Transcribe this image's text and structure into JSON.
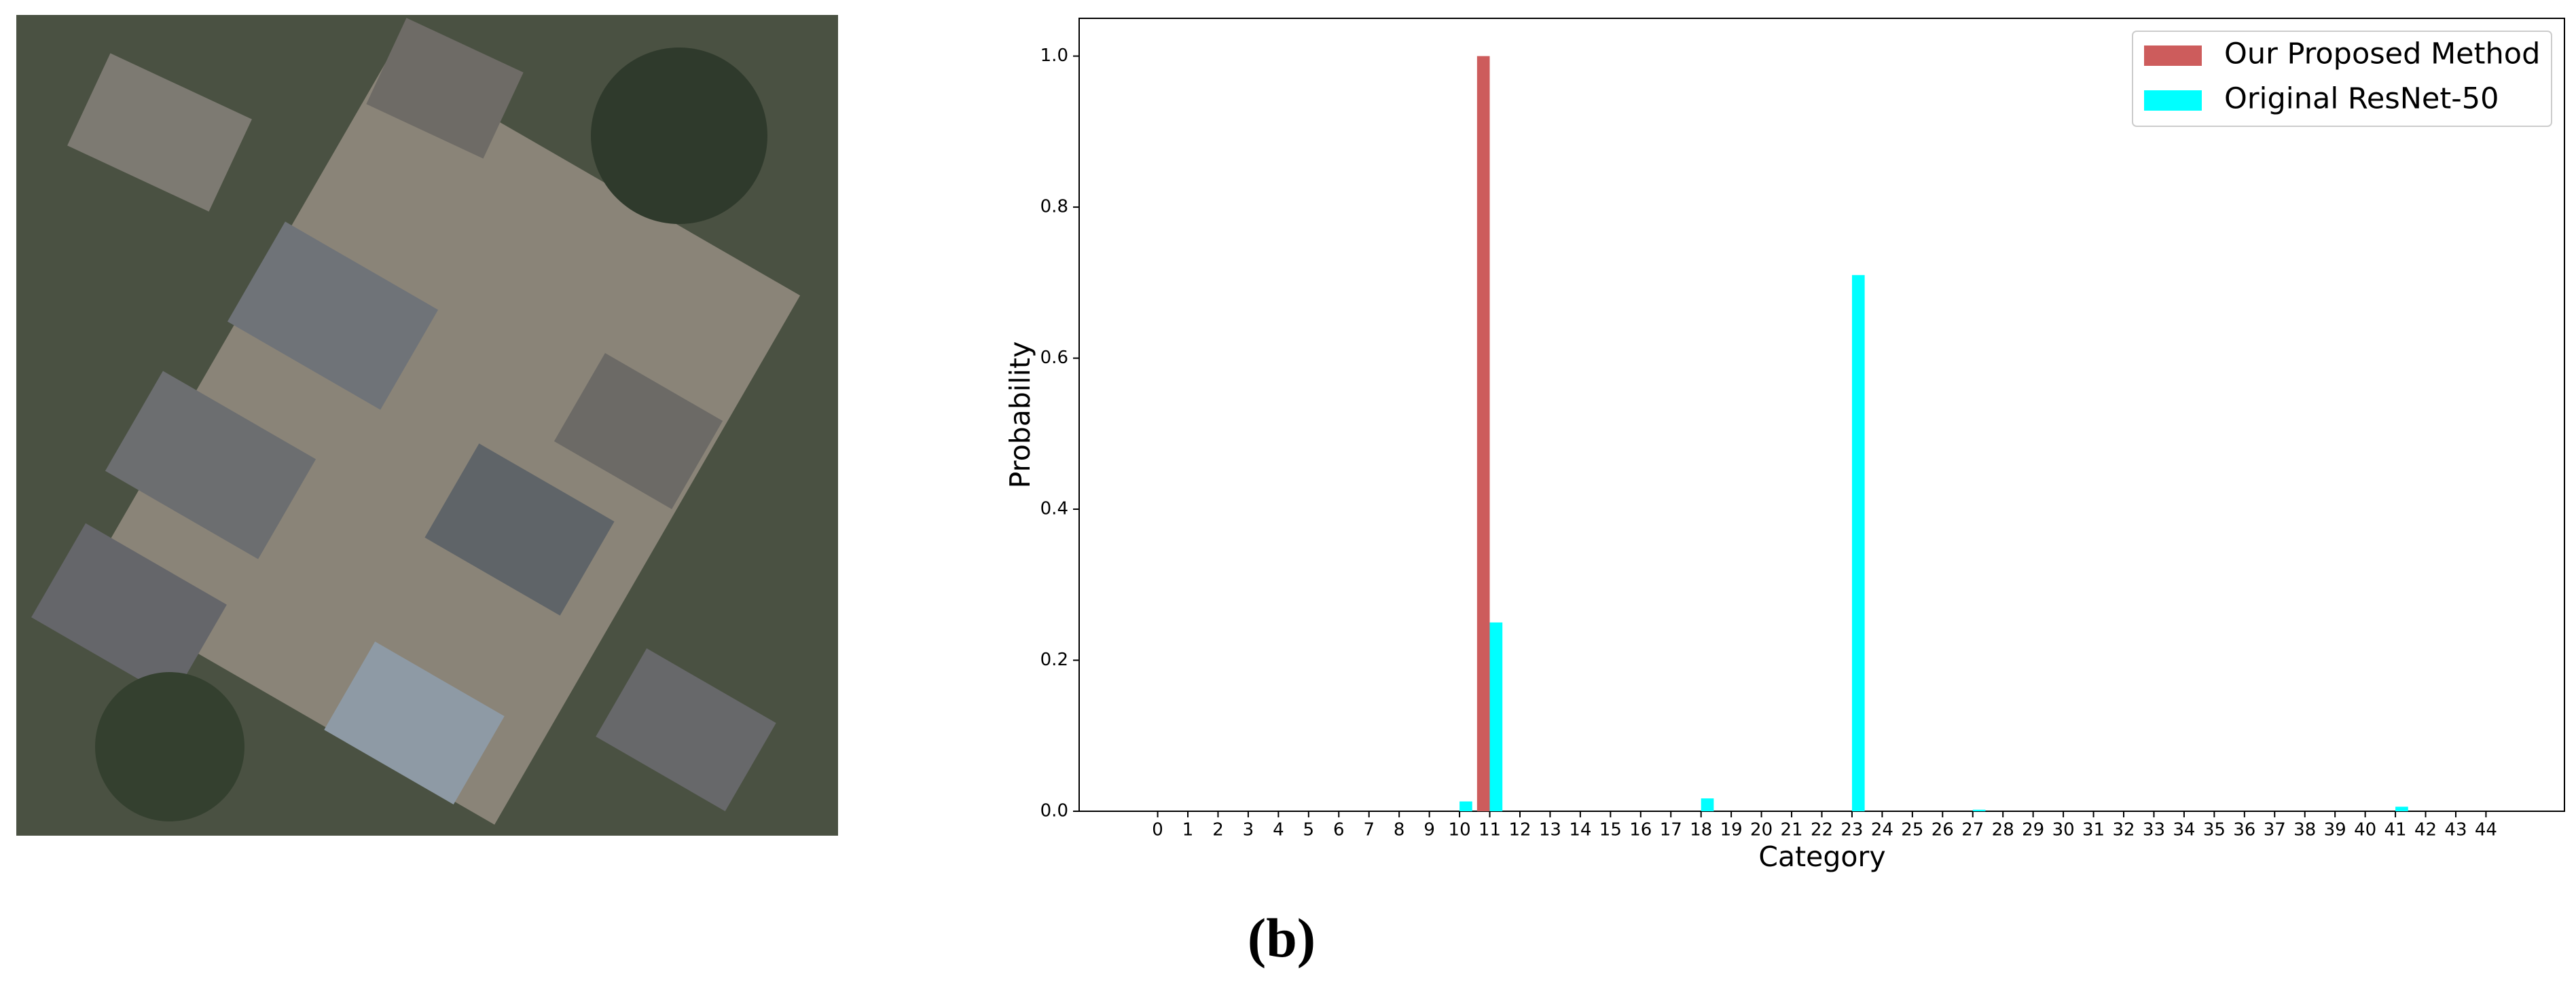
{
  "caption": "(b)",
  "chart_data": {
    "type": "bar",
    "xlabel": "Category",
    "ylabel": "Probability",
    "categories": [
      "0",
      "1",
      "2",
      "3",
      "4",
      "5",
      "6",
      "7",
      "8",
      "9",
      "10",
      "11",
      "12",
      "13",
      "14",
      "15",
      "16",
      "17",
      "18",
      "19",
      "20",
      "21",
      "22",
      "23",
      "24",
      "25",
      "26",
      "27",
      "28",
      "29",
      "30",
      "31",
      "32",
      "33",
      "34",
      "35",
      "36",
      "37",
      "38",
      "39",
      "40",
      "41",
      "42",
      "43",
      "44"
    ],
    "series": [
      {
        "name": "Our Proposed Method",
        "color": "#cd5c5c",
        "values": [
          0,
          0,
          0,
          0,
          0,
          0,
          0,
          0,
          0,
          0,
          0,
          1.0,
          0,
          0,
          0,
          0,
          0,
          0,
          0,
          0,
          0,
          0,
          0,
          0,
          0,
          0,
          0,
          0,
          0,
          0,
          0,
          0,
          0,
          0,
          0,
          0,
          0,
          0,
          0,
          0,
          0,
          0,
          0,
          0,
          0
        ]
      },
      {
        "name": "Original ResNet-50",
        "color": "#00ffff",
        "values": [
          0,
          0,
          0,
          0,
          0,
          0,
          0,
          0,
          0,
          0,
          0.013,
          0.25,
          0,
          0,
          0,
          0,
          0,
          0,
          0.017,
          0,
          0,
          0,
          0,
          0.71,
          0,
          0,
          0,
          0.002,
          0,
          0,
          0,
          0,
          0,
          0,
          0,
          0,
          0,
          0,
          0,
          0,
          0,
          0.006,
          0,
          0,
          0
        ]
      }
    ],
    "ylim": [
      0,
      1.05
    ],
    "yticks": [
      {
        "value": 0,
        "label": "0.0"
      },
      0.2,
      0.4,
      0.6,
      0.8,
      {
        "value": 1,
        "label": "1.0"
      }
    ],
    "legend": "upper right",
    "grid": false
  }
}
